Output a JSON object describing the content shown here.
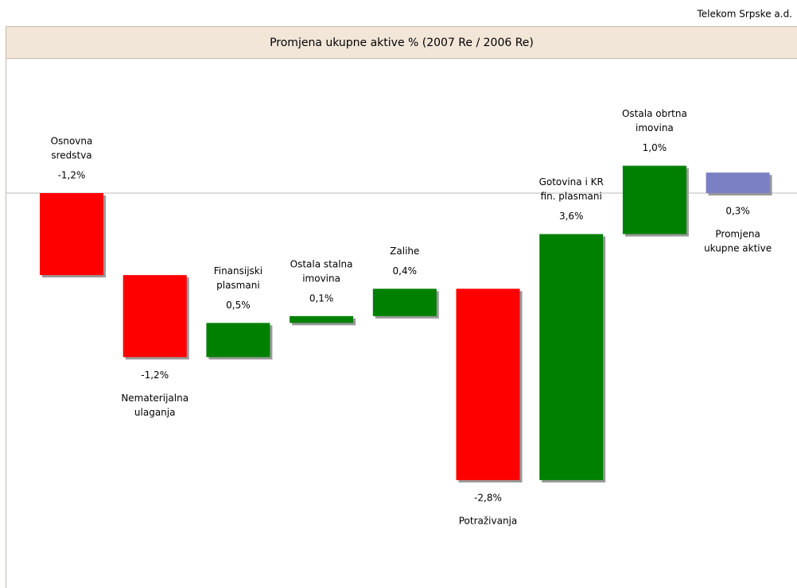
{
  "chart_data": {
    "type": "waterfall",
    "company": "Telekom Srpske a.d.",
    "title": "Promjena ukupne aktive % (2007 Re / 2006 Re)",
    "categories": [
      [
        "Osnovna",
        "sredstva"
      ],
      [
        "Nematerijalna",
        "ulaganja"
      ],
      [
        "Finansijski",
        "plasmani"
      ],
      [
        "Ostala stalna",
        "imovina"
      ],
      [
        "Zalihe"
      ],
      [
        "Potraživanja"
      ],
      [
        "Gotovina i KR",
        "fin. plasmani"
      ],
      [
        "Ostala obrtna",
        "imovina"
      ],
      [
        "Promjena",
        "ukupne aktive"
      ]
    ],
    "values": [
      -1.2,
      -1.2,
      0.5,
      0.1,
      0.4,
      -2.8,
      3.6,
      1.0,
      0.3
    ],
    "value_labels": [
      "-1,2%",
      "-1,2%",
      "0,5%",
      "0,1%",
      "0,4%",
      "-2,8%",
      "3,6%",
      "1,0%",
      "0,3%"
    ],
    "total": [
      false,
      false,
      false,
      false,
      false,
      false,
      false,
      false,
      true
    ],
    "label_position": [
      "above",
      "below",
      "above",
      "above",
      "above",
      "below",
      "above",
      "above",
      "below"
    ],
    "colors": [
      "#ff0000",
      "#ff0000",
      "#008000",
      "#008000",
      "#008000",
      "#ff0000",
      "#008000",
      "#008000",
      "#7b7fc4"
    ]
  }
}
